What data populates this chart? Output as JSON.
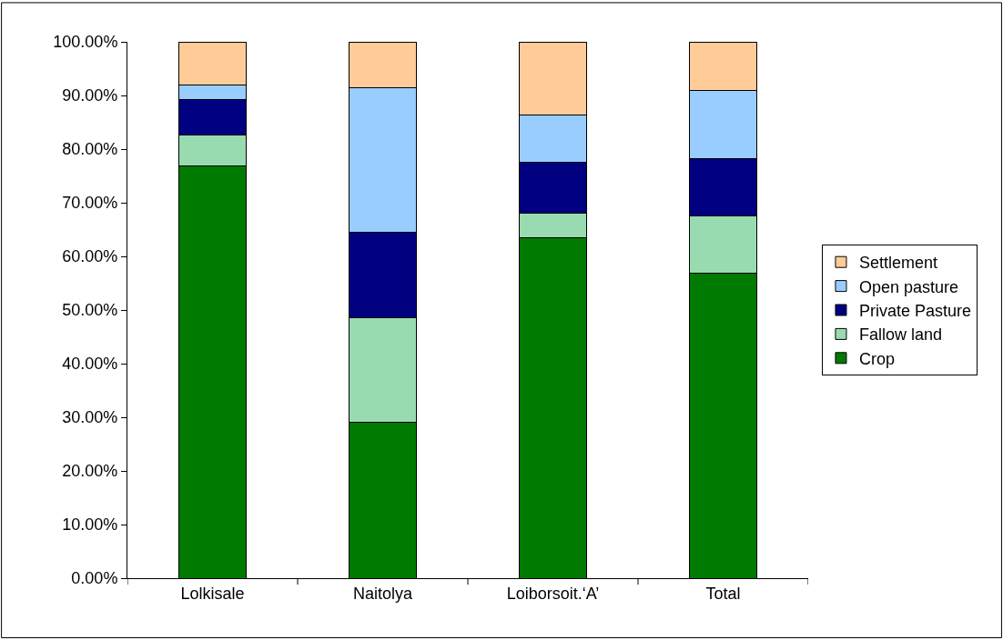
{
  "chart_data": {
    "type": "bar",
    "stacked": true,
    "categories": [
      "Lolkisale",
      "Naitolya",
      "Loiborsoit.‘A’",
      "Total"
    ],
    "series": [
      {
        "name": "Crop",
        "color": "#007a00",
        "values": [
          76.8,
          29.0,
          63.4,
          56.9
        ]
      },
      {
        "name": "Fallow land",
        "color": "#99dbb0",
        "values": [
          5.8,
          19.5,
          4.7,
          10.7
        ]
      },
      {
        "name": "Private Pasture",
        "color": "#000080",
        "values": [
          6.6,
          16.0,
          9.4,
          10.7
        ]
      },
      {
        "name": "Open pasture",
        "color": "#99ccff",
        "values": [
          2.7,
          27.0,
          8.8,
          12.7
        ]
      },
      {
        "name": "Settlement",
        "color": "#ffcc99",
        "values": [
          8.1,
          8.5,
          13.7,
          9.0
        ]
      }
    ],
    "ylim": [
      0,
      100
    ],
    "yticks": [
      {
        "value": 0,
        "label": "0.00%"
      },
      {
        "value": 10,
        "label": "10.00%"
      },
      {
        "value": 20,
        "label": "20.00%"
      },
      {
        "value": 30,
        "label": "30.00%"
      },
      {
        "value": 40,
        "label": "40.00%"
      },
      {
        "value": 50,
        "label": "50.00%"
      },
      {
        "value": 60,
        "label": "60.00%"
      },
      {
        "value": 70,
        "label": "70.00%"
      },
      {
        "value": 80,
        "label": "80.00%"
      },
      {
        "value": 90,
        "label": "90.00%"
      },
      {
        "value": 100,
        "label": "100.00%"
      }
    ],
    "grid": false,
    "legend": "right"
  }
}
